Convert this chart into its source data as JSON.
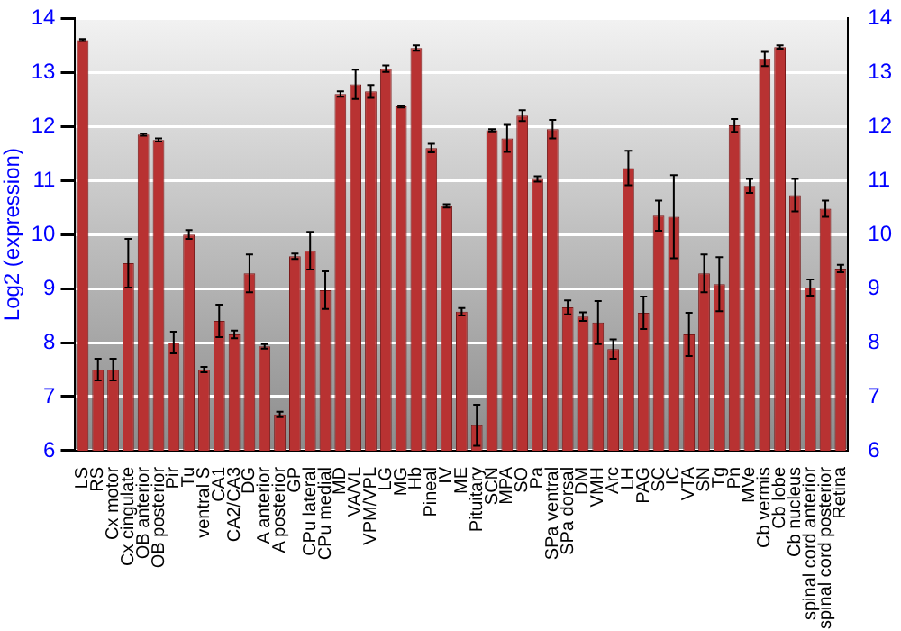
{
  "chart_data": {
    "type": "bar",
    "ylabel": "Log2 (expression)",
    "categories": [
      "LS",
      "RS",
      "Cx motor",
      "Cx cingulate",
      "OB anterior",
      "OB posterior",
      "Pir",
      "Tu",
      "ventral S",
      "CA1",
      "CA2/CA3",
      "DG",
      "A anterior",
      "A posterior",
      "GP",
      "CPu lateral",
      "CPu medial",
      "MD",
      "VA/VL",
      "VPM/VPL",
      "LG",
      "MG",
      "Hb",
      "Pineal",
      "IV",
      "ME",
      "Pituitary",
      "SCN",
      "MPA",
      "SO",
      "Pa",
      "SPa ventral",
      "SPa dorsal",
      "DM",
      "VMH",
      "Arc",
      "LH",
      "PAG",
      "SC",
      "IC",
      "VTA",
      "SN",
      "Tg",
      "Pn",
      "MVe",
      "Cb vermis",
      "Cb lobe",
      "Cb nucleus",
      "spinal cord anterior",
      "spinal cord posterior",
      "Retina"
    ],
    "values": [
      13.6,
      7.5,
      7.5,
      9.47,
      11.85,
      11.75,
      8.0,
      10.0,
      7.5,
      8.4,
      8.15,
      9.28,
      7.93,
      6.67,
      9.6,
      9.7,
      8.97,
      12.6,
      12.78,
      12.65,
      13.07,
      12.37,
      13.45,
      11.6,
      10.53,
      8.57,
      6.47,
      11.93,
      11.78,
      12.2,
      11.03,
      11.95,
      8.65,
      8.48,
      8.37,
      7.88,
      11.23,
      8.55,
      10.35,
      10.33,
      8.15,
      9.28,
      9.08,
      12.02,
      10.9,
      13.25,
      13.47,
      10.73,
      9.02,
      10.48,
      9.37
    ],
    "errors": [
      0.02,
      0.2,
      0.2,
      0.45,
      0.02,
      0.03,
      0.2,
      0.08,
      0.05,
      0.3,
      0.07,
      0.35,
      0.04,
      0.05,
      0.05,
      0.35,
      0.35,
      0.05,
      0.27,
      0.12,
      0.06,
      0.02,
      0.05,
      0.08,
      0.03,
      0.07,
      0.38,
      0.02,
      0.25,
      0.1,
      0.05,
      0.17,
      0.13,
      0.08,
      0.4,
      0.18,
      0.32,
      0.3,
      0.28,
      0.77,
      0.4,
      0.35,
      0.5,
      0.12,
      0.13,
      0.13,
      0.03,
      0.3,
      0.15,
      0.15,
      0.07
    ],
    "color": "#b83232",
    "ylim": [
      6,
      14
    ],
    "yticks": [
      6,
      7,
      8,
      9,
      10,
      11,
      12,
      13,
      14
    ],
    "y2lim": [
      6,
      14
    ],
    "y2ticks": [
      6,
      7,
      8,
      9,
      10,
      11,
      12,
      13,
      14
    ],
    "grid": "y",
    "legend": false
  }
}
